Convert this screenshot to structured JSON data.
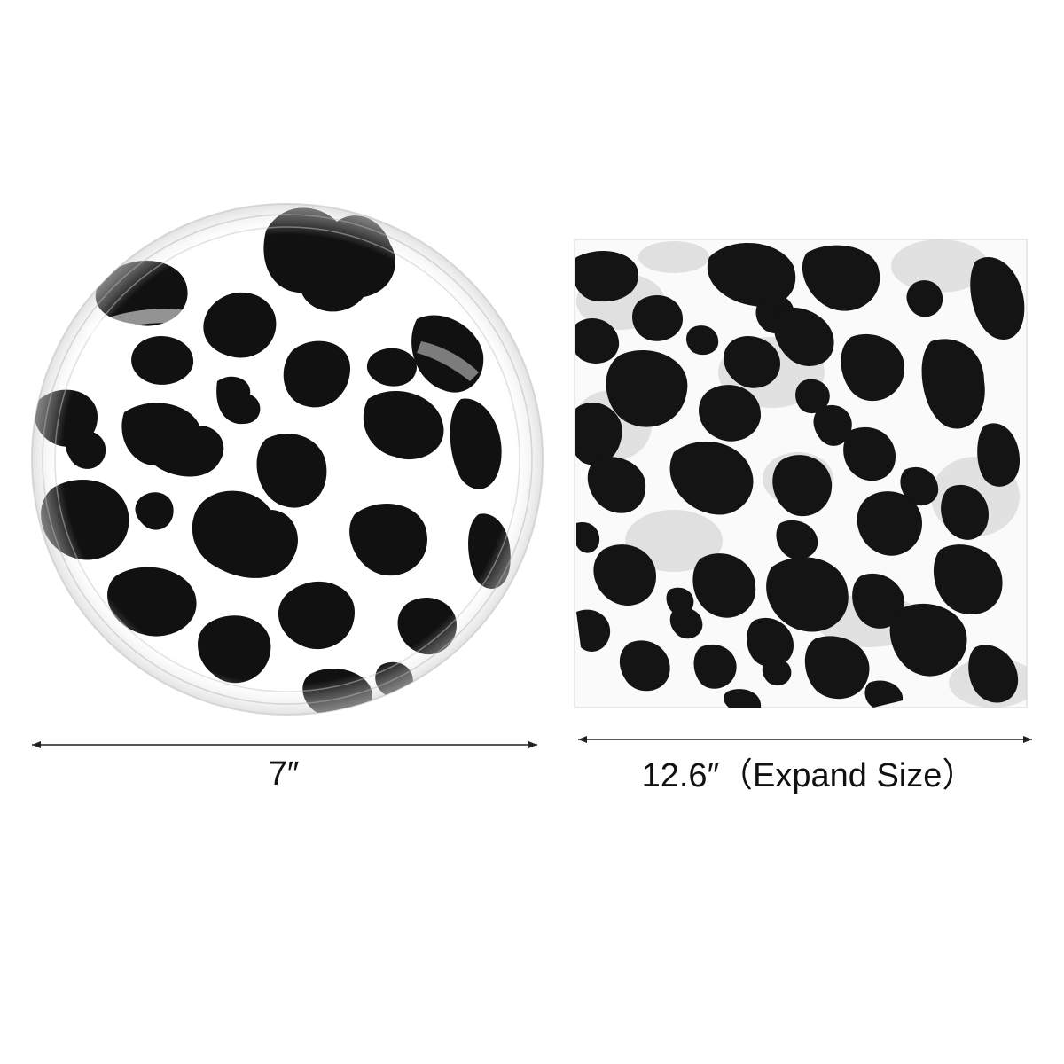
{
  "plate": {
    "size_label": "7″",
    "pattern": "cow-print",
    "spot_color": "#111111",
    "base_color": "#ffffff"
  },
  "napkin": {
    "size_label": "12.6″（Expand Size）",
    "pattern": "cow-print",
    "spot_color": "#141414",
    "base_color": "#fafafa"
  },
  "colors": {
    "background": "#ffffff",
    "dimension_line": "#222222",
    "text": "#111111"
  }
}
